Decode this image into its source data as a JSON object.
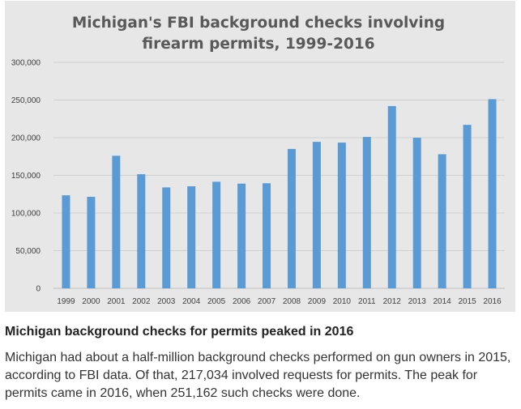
{
  "chart_data": {
    "type": "bar",
    "title_lines": [
      "Michigan's FBI background checks involving",
      "firearm permits, 1999-2016"
    ],
    "categories": [
      "1999",
      "2000",
      "2001",
      "2002",
      "2003",
      "2004",
      "2005",
      "2006",
      "2007",
      "2008",
      "2009",
      "2010",
      "2011",
      "2012",
      "2013",
      "2014",
      "2015",
      "2016"
    ],
    "values": [
      123500,
      121500,
      176000,
      151500,
      134000,
      135500,
      141500,
      139000,
      139500,
      185000,
      194500,
      193500,
      201000,
      242000,
      200000,
      178000,
      217034,
      251162
    ],
    "y_ticks": [
      "0",
      "50,000",
      "100,000",
      "150,000",
      "200,000",
      "250,000",
      "300,000"
    ],
    "y_tick_values": [
      0,
      50000,
      100000,
      150000,
      200000,
      250000,
      300000
    ],
    "ylim": [
      0,
      300000
    ],
    "grid": true,
    "bar_color": "#5b9bd5",
    "xlabel": "",
    "ylabel": ""
  },
  "caption": {
    "title": "Michigan background checks for permits peaked in 2016",
    "body": "Michigan had about a half-million background checks performed on gun owners in 2015, according to FBI data. Of that, 217,034 involved requests for permits. The peak for permits came in 2016, when 251,162 such checks were done."
  }
}
